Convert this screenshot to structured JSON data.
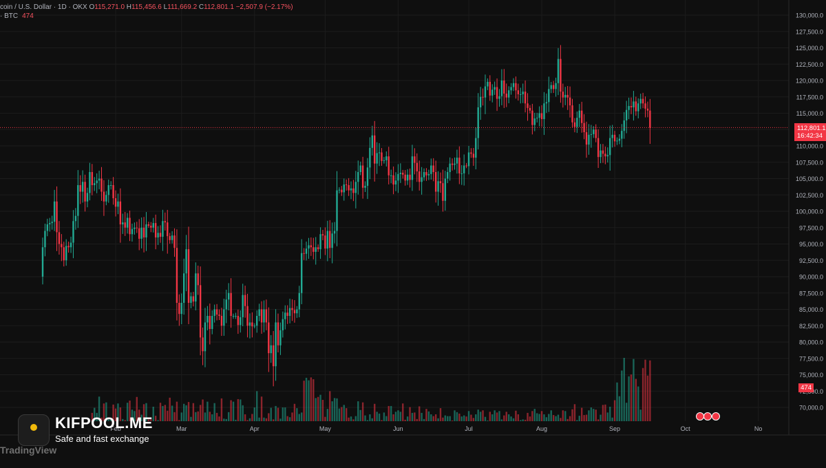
{
  "legend": {
    "symbol": "coin / U.S. Dollar · 1D · OKX",
    "o_label": "O",
    "o": "115,271.0",
    "h_label": "H",
    "h": "115,456.6",
    "l_label": "L",
    "l": "111,669.2",
    "c_label": "C",
    "c": "112,801.1",
    "change": "−2,507.9 (−2.17%)",
    "volume_label": "· BTC",
    "volume_value": "474"
  },
  "price_tag": {
    "price": "112,801.1",
    "countdown": "16:42:34"
  },
  "volume_tag": "474",
  "brand": {
    "name": "KIFPOOL.ME",
    "tagline": "Safe and fast exchange"
  },
  "watermark": "TradingView",
  "colors": {
    "up": "#22ab94",
    "down": "#f23645",
    "background": "#0f0f0f",
    "grid": "#1c1c1c",
    "text": "#b2b5be"
  },
  "chart_data": {
    "type": "candlestick",
    "title": "",
    "xlabel": "",
    "ylabel": "",
    "ylim": [
      68000,
      131000
    ],
    "y_ticks": [
      "70,000.0",
      "72,500.0",
      "75,000.0",
      "77,500.0",
      "80,000.0",
      "82,500.0",
      "85,000.0",
      "87,500.0",
      "90,000.0",
      "92,500.0",
      "95,000.0",
      "97,500.0",
      "100,000.0",
      "102,500.0",
      "105,000.0",
      "107,500.0",
      "110,000.0",
      "112,500.0",
      "115,000.0",
      "117,500.0",
      "120,000.0",
      "122,500.0",
      "125,000.0",
      "127,500.0",
      "130,000.0"
    ],
    "x_ticks": [
      "Feb",
      "Mar",
      "Apr",
      "May",
      "Jun",
      "Jul",
      "Aug",
      "Sep",
      "Oct",
      "No"
    ],
    "x_tick_day_index": [
      31,
      59,
      90,
      120,
      151,
      181,
      212,
      243,
      273,
      304
    ],
    "start_date": "2025-01-01",
    "last_close": 112801.1,
    "closes": [
      94500,
      97000,
      98000,
      98200,
      98400,
      101500,
      96800,
      95000,
      94500,
      92500,
      94700,
      94500,
      95200,
      98500,
      99300,
      104000,
      103000,
      104500,
      101500,
      102800,
      106000,
      104000,
      104300,
      104700,
      105000,
      103000,
      101500,
      102500,
      104000,
      104000,
      102000,
      100700,
      101500,
      98000,
      98300,
      97500,
      99000,
      96500,
      97300,
      97500,
      97400,
      95800,
      97500,
      96000,
      98000,
      97800,
      97500,
      98200,
      96000,
      96700,
      96100,
      98500,
      98300,
      96200,
      95600,
      96300,
      94400,
      86000,
      84300,
      86000,
      90500,
      94200,
      86000,
      87000,
      86200,
      90500,
      88700,
      80700,
      78600,
      83000,
      84000,
      82000,
      84000,
      85000,
      84200,
      84000,
      82500,
      85000,
      86500,
      87500,
      84000,
      84000,
      84000,
      82600,
      83800,
      87200,
      85500,
      82500,
      83000,
      82400,
      82500,
      84000,
      85000,
      83000,
      85000,
      83000,
      78300,
      79500,
      76300,
      83000,
      79500,
      81800,
      83500,
      84500,
      84000,
      85200,
      84900,
      84400,
      85000,
      87500,
      93600,
      93500,
      94300,
      94800,
      94500,
      93800,
      94500,
      94200,
      96500,
      96300,
      94300,
      97000,
      94400,
      96600,
      97000,
      103200,
      103300,
      102900,
      104100,
      104000,
      103200,
      103500,
      102800,
      104500,
      106000,
      107000,
      103600,
      103900,
      106700,
      109700,
      111600,
      107300,
      108900,
      109000,
      107700,
      107800,
      108400,
      105500,
      105500,
      104100,
      104700,
      105700,
      105900,
      105600,
      104700,
      105600,
      104800,
      108400,
      107400,
      106100,
      104500,
      105200,
      106000,
      105500,
      105700,
      107000,
      106000,
      103000,
      104600,
      104300,
      101600,
      105000,
      106000,
      107300,
      107100,
      107300,
      108200,
      105800,
      105800,
      107000,
      106900,
      109000,
      108800,
      108200,
      111200,
      115900,
      117500,
      117400,
      119100,
      119800,
      117700,
      118600,
      119000,
      117200,
      117600,
      120000,
      118000,
      117400,
      118500,
      119000,
      119600,
      118500,
      117900,
      117900,
      118300,
      116500,
      115800,
      115400,
      113200,
      114200,
      114300,
      115000,
      114100,
      116500,
      116700,
      118700,
      119300,
      118700,
      119600,
      123300,
      118300,
      117400,
      117800,
      117400,
      116200,
      113600,
      112900,
      114300,
      115400,
      113500,
      112100,
      110200,
      111700,
      111800,
      112500,
      111200,
      108300,
      109300,
      108800,
      108400,
      108600,
      111200,
      111700,
      110700,
      110800,
      111100,
      112300,
      113900,
      115500,
      116100,
      115900,
      116800,
      115300,
      116500,
      117200,
      116500,
      115700,
      115400,
      112801.1
    ],
    "vol_period_start_day": 21,
    "volume": [
      2300,
      3700,
      2300,
      6800,
      1000,
      4900,
      5200,
      700,
      400,
      4600,
      3500,
      4900,
      3800,
      600,
      300,
      5100,
      5700,
      3200,
      2800,
      6700,
      3200,
      1800,
      4700,
      5000,
      500,
      600,
      4000,
      1500,
      300,
      5100,
      4200,
      4500,
      2900,
      6500,
      4300,
      2500,
      5400,
      300,
      2400,
      4800,
      4400,
      5300,
      1200,
      5000,
      2500,
      2700,
      4500,
      6000,
      2400,
      5400,
      2600,
      1900,
      5000,
      2300,
      1300,
      6300,
      700,
      600,
      2500,
      5800,
      5400,
      400,
      6100,
      6000,
      4400,
      1900,
      300,
      800,
      2000,
      3800,
      8300,
      1000,
      6800,
      1000,
      800,
      2200,
      3700,
      500,
      4200,
      3700,
      700,
      3800,
      3800,
      1400,
      1100,
      2400,
      4800,
      3600,
      2000,
      2400,
      11200,
      12000,
      11300,
      12100,
      11600,
      6400,
      6700,
      7300,
      5900,
      1200,
      3400,
      8300,
      5500,
      6400,
      6300,
      3500,
      3900,
      4500,
      3600,
      1000,
      1300,
      500,
      1400,
      5500,
      3100,
      5200,
      1600,
      300,
      1900,
      800,
      4800,
      2600,
      2100,
      300,
      2400,
      1400,
      4200,
      4200,
      1900,
      2600,
      3000,
      2600,
      4900,
      400,
      1300,
      3900,
      2300,
      2400,
      600,
      4100,
      2300,
      600,
      3400,
      2700,
      1900,
      1400,
      1900,
      800,
      3600,
      1000,
      1600,
      1400,
      1400,
      200,
      3000,
      2500,
      2100,
      1300,
      1600,
      1300,
      2800,
      1800,
      900,
      1900,
      3200,
      2600,
      3000,
      1200,
      200,
      2600,
      1900,
      3000,
      2400,
      2800,
      500,
      1600,
      2600,
      1900,
      1300,
      800,
      2900,
      1900,
      300,
      500,
      400,
      2300,
      1300,
      2800,
      3400,
      2200,
      2000,
      2800,
      1900,
      1100,
      2000,
      3000,
      1700,
      1400,
      1800,
      900,
      3000,
      2800,
      600,
      1400,
      3300,
      4700,
      300,
      1500,
      3700,
      1700,
      1800,
      3000,
      3800,
      3400,
      3200,
      500,
      1800,
      4500,
      4600,
      2400,
      4000,
      1000,
      5800,
      10700,
      6900,
      14000,
      17500,
      5100,
      12400,
      12900,
      17200,
      11700,
      9600,
      3200,
      14700,
      17000,
      12600,
      16800,
      4300,
      17300,
      11800,
      13300,
      4000,
      9200,
      14200,
      13300,
      11100,
      15900,
      6900,
      9400,
      11200,
      12900,
      7300,
      16200,
      15000,
      9600,
      6800,
      14400
    ]
  }
}
